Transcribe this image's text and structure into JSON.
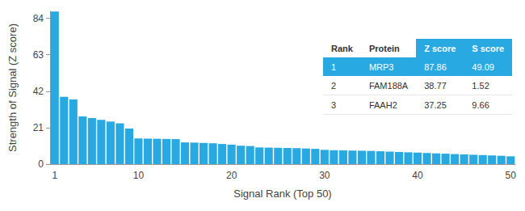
{
  "chart_data": {
    "type": "bar",
    "x_label": "Signal Rank (Top 50)",
    "y_label": "Strength of Signal (Z score)",
    "categories": [
      "1",
      null,
      null,
      null,
      null,
      null,
      null,
      null,
      null,
      "10",
      null,
      null,
      null,
      null,
      null,
      null,
      null,
      null,
      null,
      "20",
      null,
      null,
      null,
      null,
      null,
      null,
      null,
      null,
      null,
      "30",
      null,
      null,
      null,
      null,
      null,
      null,
      null,
      null,
      null,
      "40",
      null,
      null,
      null,
      null,
      null,
      null,
      null,
      null,
      null,
      "50"
    ],
    "values": [
      87.86,
      38.77,
      37.25,
      27.5,
      26.5,
      25.5,
      24.5,
      23.5,
      20.5,
      14.8,
      14.7,
      14.6,
      14.5,
      14.4,
      12.5,
      12.4,
      12.2,
      12.0,
      11.6,
      11.2,
      10.6,
      10.4,
      9.6,
      9.5,
      9.4,
      9.3,
      9.2,
      9.0,
      8.8,
      8.2,
      8.0,
      7.9,
      7.8,
      7.7,
      7.6,
      7.4,
      7.2,
      7.0,
      6.8,
      6.6,
      6.4,
      6.2,
      6.0,
      5.8,
      5.6,
      5.4,
      5.2,
      5.0,
      4.8,
      4.5
    ],
    "color": "#29a9e1",
    "ylim": [
      0,
      88
    ],
    "yticks": [
      0,
      21,
      42,
      63,
      84
    ],
    "grid": false
  },
  "table": {
    "header": [
      "Rank",
      "Protein",
      "Z score",
      "S score"
    ],
    "rows": [
      [
        1,
        "MRP3",
        87.86,
        49.09
      ],
      [
        2,
        "FAM188A",
        38.77,
        1.52
      ],
      [
        3,
        "FAAH2",
        37.25,
        9.66
      ]
    ]
  }
}
